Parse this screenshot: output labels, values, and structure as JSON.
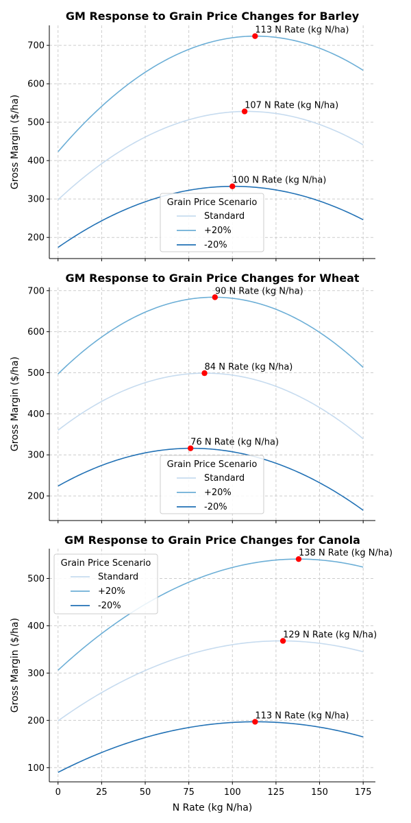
{
  "chart_data": [
    {
      "type": "line",
      "title": "GM Response to Grain Price Changes for Barley",
      "xlabel": "",
      "ylabel": "Gross Margin ($/ha)",
      "xlim": [
        -5,
        182
      ],
      "ylim": [
        145,
        752
      ],
      "xticks": [
        0,
        25,
        50,
        75,
        100,
        125,
        150,
        175
      ],
      "xtick_labels_shown": false,
      "yticks": [
        200,
        300,
        400,
        500,
        600,
        700
      ],
      "grid": true,
      "legend": {
        "title": "Grain Price Scenario",
        "placement": "lower-center"
      },
      "series": [
        {
          "name": "Standard",
          "color": "#c6dbef",
          "x": [
            0,
            107,
            175
          ],
          "y": [
            298,
            528,
            441
          ]
        },
        {
          "name": "+20%",
          "color": "#6baed6",
          "x": [
            0,
            113,
            175
          ],
          "y": [
            423,
            724,
            635
          ]
        },
        {
          "name": "-20%",
          "color": "#2171b5",
          "x": [
            0,
            100,
            175
          ],
          "y": [
            174,
            333,
            246
          ]
        }
      ],
      "optima": [
        {
          "x": 113,
          "y": 724,
          "label": "113 N Rate (kg N/ha)"
        },
        {
          "x": 107,
          "y": 528,
          "label": "107 N Rate (kg N/ha)"
        },
        {
          "x": 100,
          "y": 333,
          "label": "100 N Rate (kg N/ha)"
        }
      ]
    },
    {
      "type": "line",
      "title": "GM Response to Grain Price Changes for Wheat",
      "xlabel": "",
      "ylabel": "Gross Margin ($/ha)",
      "xlim": [
        -5,
        182
      ],
      "ylim": [
        140,
        708
      ],
      "xticks": [
        0,
        25,
        50,
        75,
        100,
        125,
        150,
        175
      ],
      "xtick_labels_shown": false,
      "yticks": [
        200,
        300,
        400,
        500,
        600,
        700
      ],
      "grid": true,
      "legend": {
        "title": "Grain Price Scenario",
        "placement": "lower-center"
      },
      "series": [
        {
          "name": "Standard",
          "color": "#c6dbef",
          "x": [
            0,
            84,
            175
          ],
          "y": [
            360,
            499,
            339
          ]
        },
        {
          "name": "+20%",
          "color": "#6baed6",
          "x": [
            0,
            90,
            175
          ],
          "y": [
            497,
            684,
            513
          ]
        },
        {
          "name": "-20%",
          "color": "#2171b5",
          "x": [
            0,
            76,
            175
          ],
          "y": [
            224,
            316,
            165
          ]
        }
      ],
      "optima": [
        {
          "x": 90,
          "y": 684,
          "label": "90 N Rate (kg N/ha)"
        },
        {
          "x": 84,
          "y": 499,
          "label": "84 N Rate (kg N/ha)"
        },
        {
          "x": 76,
          "y": 316,
          "label": "76 N Rate (kg N/ha)"
        }
      ]
    },
    {
      "type": "line",
      "title": "GM Response to Grain Price Changes for Canola",
      "xlabel": "N Rate (kg N/ha)",
      "ylabel": "Gross Margin ($/ha)",
      "xlim": [
        -5,
        182
      ],
      "ylim": [
        70,
        563
      ],
      "xticks": [
        0,
        25,
        50,
        75,
        100,
        125,
        150,
        175
      ],
      "xtick_labels_shown": true,
      "yticks": [
        100,
        200,
        300,
        400,
        500
      ],
      "grid": true,
      "legend": {
        "title": "Grain Price Scenario",
        "placement": "upper-left"
      },
      "series": [
        {
          "name": "Standard",
          "color": "#c6dbef",
          "x": [
            0,
            129,
            175
          ],
          "y": [
            199,
            368,
            345
          ]
        },
        {
          "name": "+20%",
          "color": "#6baed6",
          "x": [
            0,
            138,
            175
          ],
          "y": [
            306,
            541,
            524
          ]
        },
        {
          "name": "-20%",
          "color": "#2171b5",
          "x": [
            0,
            113,
            175
          ],
          "y": [
            90,
            197,
            165
          ]
        }
      ],
      "optima": [
        {
          "x": 138,
          "y": 541,
          "label": "138 N Rate (kg N/ha)"
        },
        {
          "x": 129,
          "y": 368,
          "label": "129 N Rate (kg N/ha)"
        },
        {
          "x": 113,
          "y": 197,
          "label": "113 N Rate (kg N/ha)"
        }
      ]
    }
  ]
}
